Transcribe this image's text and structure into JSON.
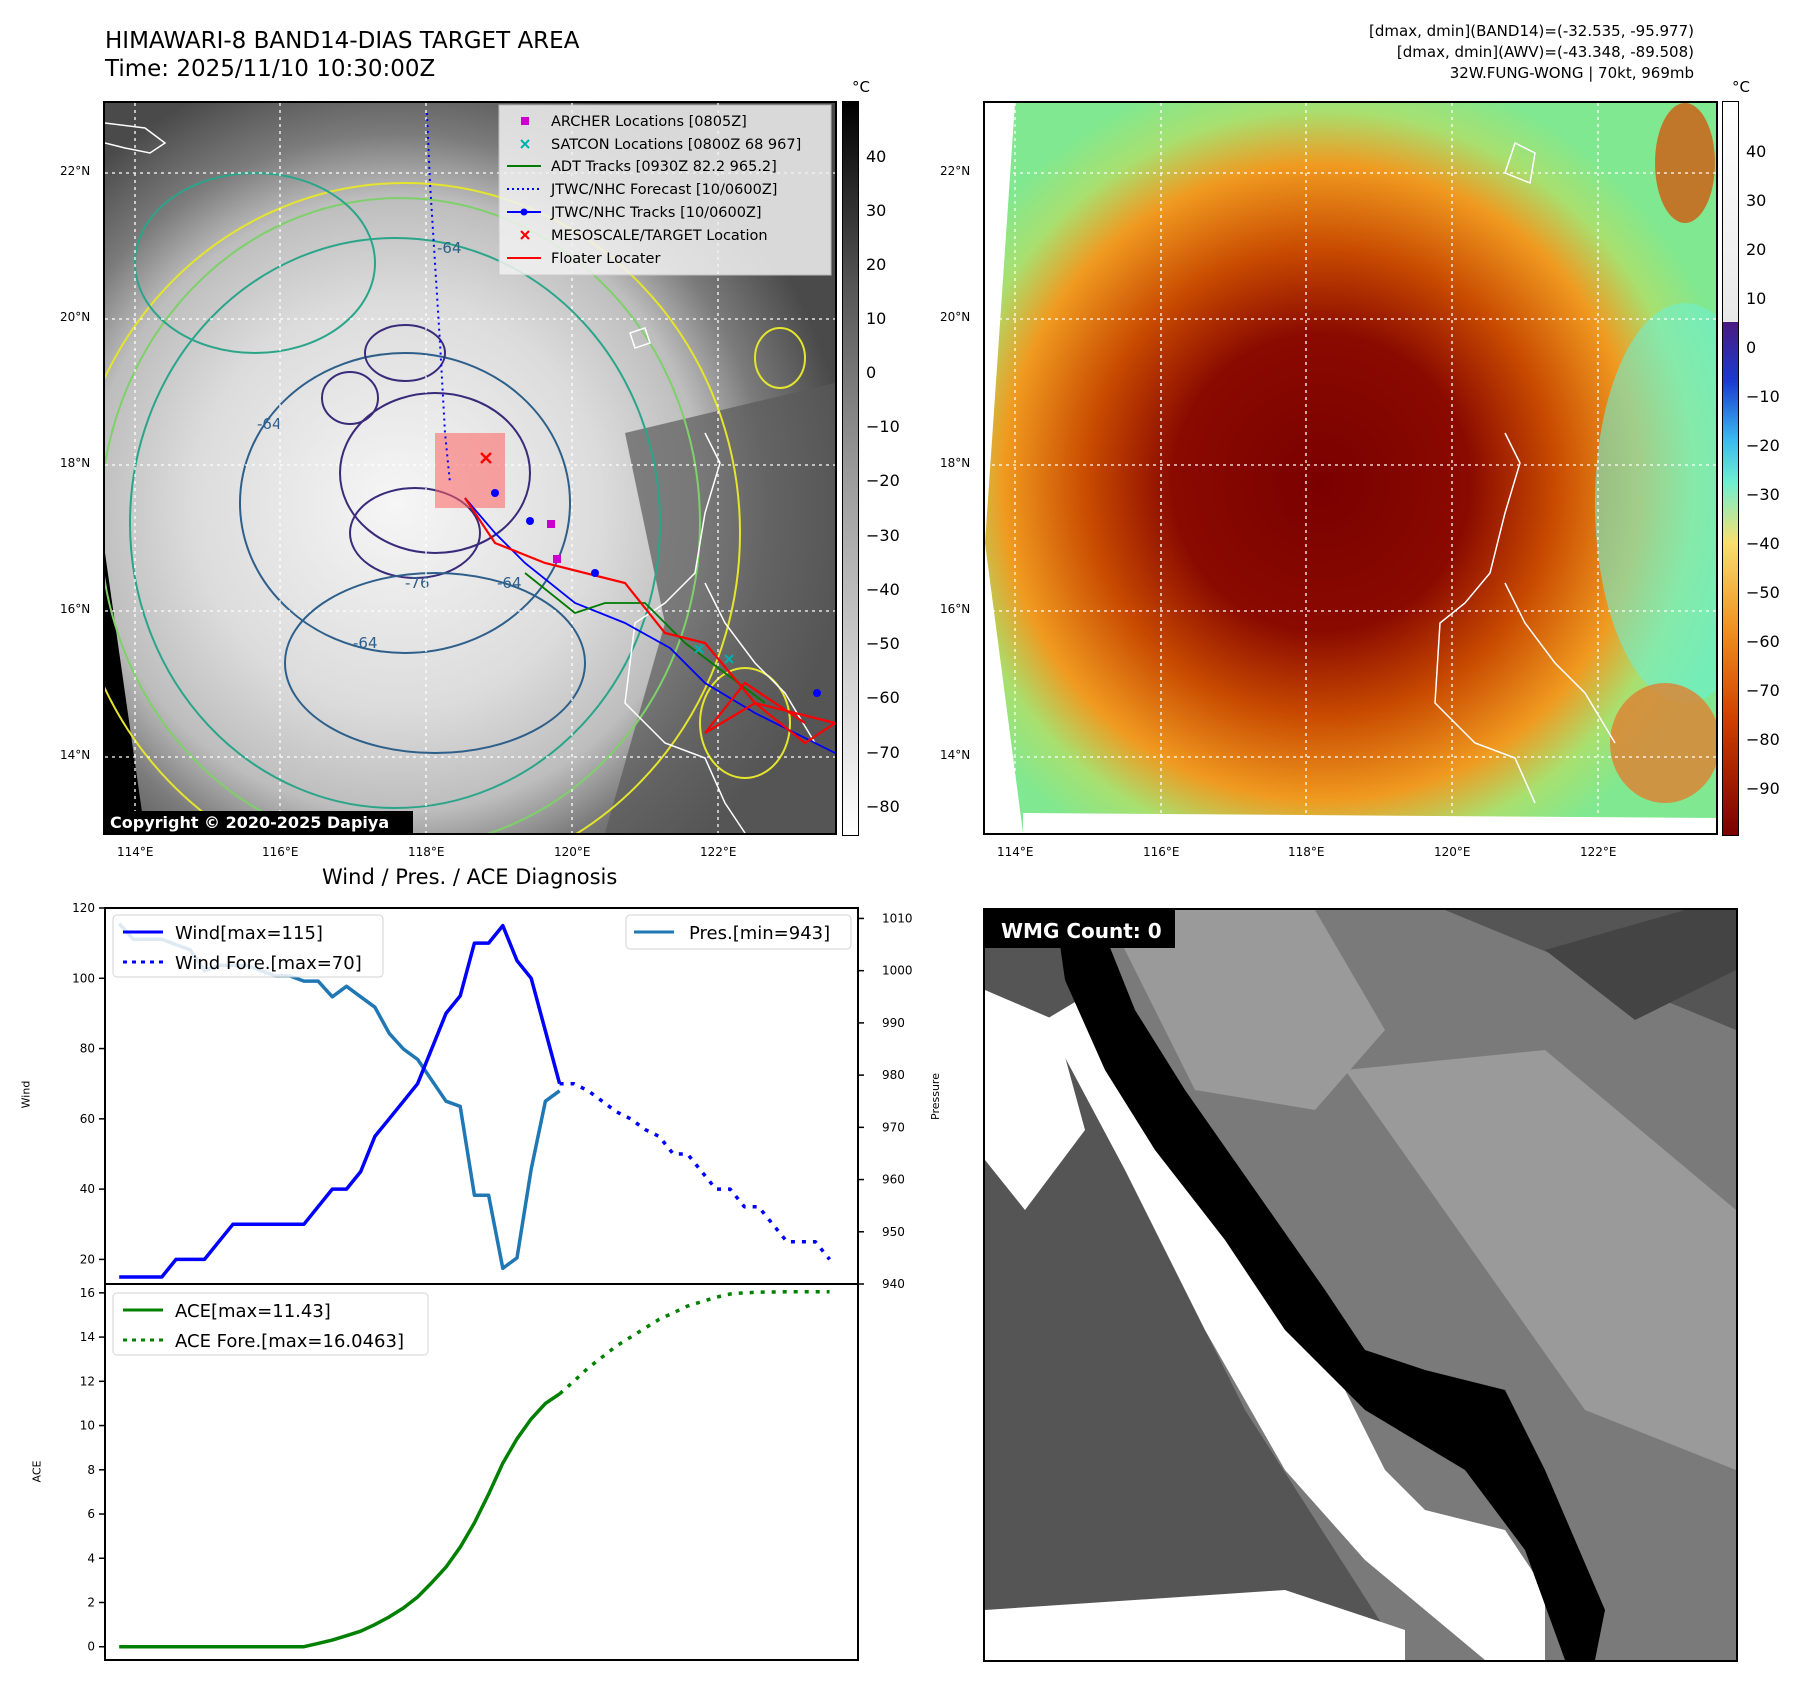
{
  "header": {
    "title_line1": "HIMAWARI-8 BAND14-DIAS TARGET AREA",
    "title_line2": "Time: 2025/11/10 10:30:00Z",
    "info_line1": "[dmax, dmin](BAND14)=(-32.535, -95.977)",
    "info_line2": "[dmax, dmin](AWV)=(-43.348, -89.508)",
    "info_line3": "32W.FUNG-WONG | 70kt, 969mb"
  },
  "map_axes": {
    "lon_labels": [
      "114°E",
      "116°E",
      "118°E",
      "120°E",
      "122°E"
    ],
    "lat_labels": [
      "22°N",
      "20°N",
      "18°N",
      "16°N",
      "14°N"
    ],
    "copyright": "Copyright © 2020-2025 Dapiya",
    "contour_labels": [
      "-64",
      "-64",
      "-76",
      "-64",
      "-64"
    ]
  },
  "legend": {
    "items": [
      {
        "label": "ARCHER Locations [0805Z]",
        "color": "#cc00cc",
        "marker": "square"
      },
      {
        "label": "SATCON Locations [0800Z 68 967]",
        "color": "#00b0b0",
        "marker": "x"
      },
      {
        "label": "ADT Tracks [0930Z 82.2 965.2]",
        "color": "#007a00",
        "marker": "line"
      },
      {
        "label": "JTWC/NHC Forecast [10/0600Z]",
        "color": "#0000ff",
        "marker": "dotted"
      },
      {
        "label": "JTWC/NHC Tracks [10/0600Z]",
        "color": "#0000ff",
        "marker": "line-dot"
      },
      {
        "label": "MESOSCALE/TARGET Location",
        "color": "#ff0000",
        "marker": "x"
      },
      {
        "label": "Floater Locater",
        "color": "#ff0000",
        "marker": "line"
      }
    ]
  },
  "colorbar_gray": {
    "unit": "°C",
    "ticks": [
      "40",
      "30",
      "20",
      "10",
      "0",
      "−10",
      "−20",
      "−30",
      "−40",
      "−50",
      "−60",
      "−70",
      "−80"
    ]
  },
  "colorbar_color": {
    "unit": "°C",
    "ticks": [
      "40",
      "30",
      "20",
      "10",
      "0",
      "−10",
      "−20",
      "−30",
      "−40",
      "−50",
      "−60",
      "−70",
      "−80",
      "−90"
    ]
  },
  "wmg": {
    "label": "WMG Count: 0"
  },
  "chart_data": [
    {
      "type": "line",
      "title": "Wind / Pres. / ACE Diagnosis",
      "ylabel": "Wind",
      "ylabel_right": "Pressure",
      "ylim": [
        13,
        120
      ],
      "ylim_right": [
        940,
        1012
      ],
      "yticks": [
        20,
        40,
        60,
        80,
        100,
        120
      ],
      "yticks_right": [
        940,
        950,
        960,
        970,
        980,
        990,
        1000,
        1010
      ],
      "x_range": [
        -1,
        52
      ],
      "series": [
        {
          "name": "Wind[max=115]",
          "style": "solid",
          "color": "#0000ff",
          "x": [
            0,
            1,
            2,
            3,
            4,
            5,
            6,
            7,
            8,
            9,
            10,
            11,
            12,
            13,
            14,
            15,
            16,
            17,
            18,
            19,
            20,
            21,
            22,
            23,
            24,
            25,
            26,
            27,
            28,
            29,
            30,
            31
          ],
          "values": [
            15,
            15,
            15,
            15,
            20,
            20,
            20,
            25,
            30,
            30,
            30,
            30,
            30,
            30,
            35,
            40,
            40,
            45,
            55,
            60,
            65,
            70,
            80,
            90,
            95,
            110,
            110,
            115,
            105,
            100,
            85,
            70
          ]
        },
        {
          "name": "Wind Fore.[max=70]",
          "style": "dotted",
          "color": "#0000ff",
          "x": [
            31,
            32,
            33,
            34,
            35,
            36,
            37,
            38,
            39,
            40,
            41,
            42,
            43,
            44,
            45,
            46,
            47,
            48,
            49,
            50
          ],
          "values": [
            70,
            70,
            68,
            65,
            62,
            60,
            57,
            55,
            50,
            50,
            45,
            40,
            40,
            35,
            35,
            30,
            25,
            25,
            25,
            20
          ]
        },
        {
          "name": "Pres.[min=943]",
          "style": "solid",
          "color": "#1f77b4",
          "axis": "right",
          "x": [
            0,
            1,
            2,
            3,
            4,
            5,
            6,
            7,
            8,
            9,
            10,
            11,
            12,
            13,
            14,
            15,
            16,
            17,
            18,
            19,
            20,
            21,
            22,
            23,
            24,
            25,
            26,
            27,
            28,
            29,
            30,
            31
          ],
          "values": [
            1009,
            1006,
            1006,
            1006,
            1005,
            1004,
            1000,
            1001,
            1001,
            1001,
            1000,
            999,
            999,
            998,
            998,
            995,
            997,
            995,
            993,
            988,
            985,
            983,
            979,
            975,
            974,
            957,
            957,
            943,
            945,
            962,
            975,
            977
          ]
        }
      ]
    },
    {
      "type": "line",
      "ylabel": "ACE",
      "ylim": [
        -0.6,
        16.4
      ],
      "yticks": [
        0,
        2,
        4,
        6,
        8,
        10,
        12,
        14,
        16
      ],
      "x_range": [
        -1,
        52
      ],
      "series": [
        {
          "name": "ACE[max=11.43]",
          "style": "solid",
          "color": "#008000",
          "x": [
            0,
            2,
            4,
            6,
            8,
            10,
            12,
            13,
            14,
            15,
            16,
            17,
            18,
            19,
            20,
            21,
            22,
            23,
            24,
            25,
            26,
            27,
            28,
            29,
            30,
            31
          ],
          "values": [
            0,
            0,
            0,
            0,
            0,
            0,
            0,
            0,
            0.15,
            0.3,
            0.5,
            0.7,
            1.0,
            1.35,
            1.75,
            2.25,
            2.9,
            3.6,
            4.5,
            5.6,
            6.9,
            8.3,
            9.4,
            10.3,
            11.0,
            11.43
          ]
        },
        {
          "name": "ACE Fore.[max=16.0463]",
          "style": "dotted",
          "color": "#008000",
          "x": [
            31,
            32,
            33,
            34,
            35,
            36,
            37,
            38,
            39,
            40,
            41,
            42,
            43,
            44,
            45,
            46,
            47,
            48,
            49,
            50
          ],
          "values": [
            11.43,
            12.0,
            12.6,
            13.1,
            13.6,
            14.0,
            14.4,
            14.8,
            15.1,
            15.4,
            15.6,
            15.8,
            15.95,
            16.0,
            16.03,
            16.04,
            16.0463,
            16.0463,
            16.0463,
            16.0463
          ]
        }
      ]
    }
  ]
}
